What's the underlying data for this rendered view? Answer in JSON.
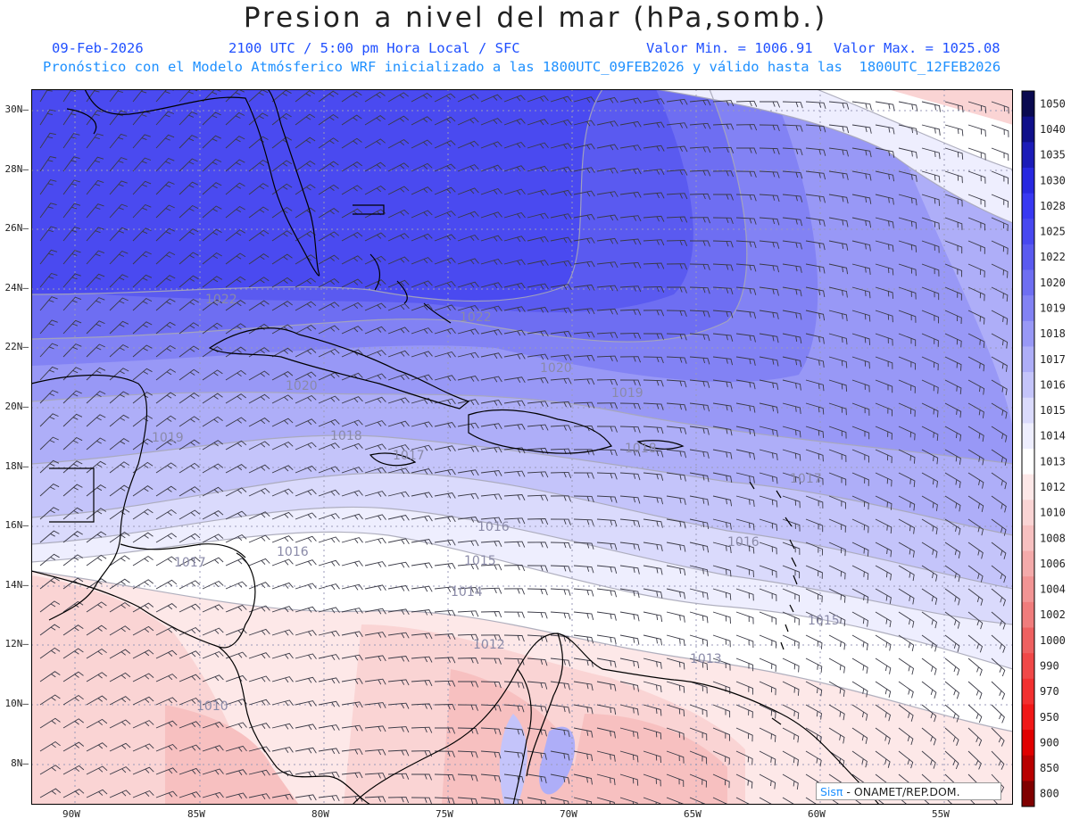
{
  "header": {
    "title": "Presion a nivel del mar (hPa,somb.)",
    "date": "09-Feb-2026",
    "time_info": "2100 UTC / 5:00 pm Hora Local / SFC",
    "min_label": "Valor Min. = 1006.91",
    "max_label": "Valor Max. = 1025.08",
    "forecast_info": "Pronóstico con el Modelo Atmósferico WRF inicializado a las 1800UTC_09FEB2026 y válido hasta las  1800UTC_12FEB2026"
  },
  "axes": {
    "lat_labels": [
      "30N",
      "28N",
      "26N",
      "24N",
      "22N",
      "20N",
      "18N",
      "16N",
      "14N",
      "12N",
      "10N",
      "8N"
    ],
    "lon_labels": [
      "90W",
      "85W",
      "80W",
      "75W",
      "70W",
      "65W",
      "60W",
      "55W"
    ]
  },
  "legend": {
    "levels": [
      "1050",
      "1040",
      "1035",
      "1030",
      "1028",
      "1025",
      "1022",
      "1020",
      "1019",
      "1018",
      "1017",
      "1016",
      "1015",
      "1014",
      "1013",
      "1012",
      "1010",
      "1008",
      "1006",
      "1004",
      "1002",
      "1000",
      "990",
      "970",
      "950",
      "900",
      "850",
      "800"
    ],
    "colors": [
      "#0a0a50",
      "#10108a",
      "#1c1cb8",
      "#2828e0",
      "#3838f2",
      "#4848f0",
      "#5a5af0",
      "#6e6ef2",
      "#8282f4",
      "#9898f6",
      "#aeaef8",
      "#c4c4fa",
      "#dadafc",
      "#eeeefe",
      "#ffffff",
      "#fde8e8",
      "#fad4d4",
      "#f7c0c0",
      "#f4aaaa",
      "#f29494",
      "#f07c7c",
      "#ee6060",
      "#f04848",
      "#f23030",
      "#f01818",
      "#e00000",
      "#b80000",
      "#800000"
    ]
  },
  "contour_labels": [
    "1022",
    "1022",
    "1020",
    "1020",
    "1019",
    "1019",
    "1018",
    "1018",
    "1017",
    "1017",
    "1017",
    "1016",
    "1016",
    "1016",
    "1015",
    "1015",
    "1014",
    "1013",
    "1012",
    "1010"
  ],
  "credit": {
    "brand": "Sisπ",
    "text": " - ONAMET/REP.DOM."
  }
}
